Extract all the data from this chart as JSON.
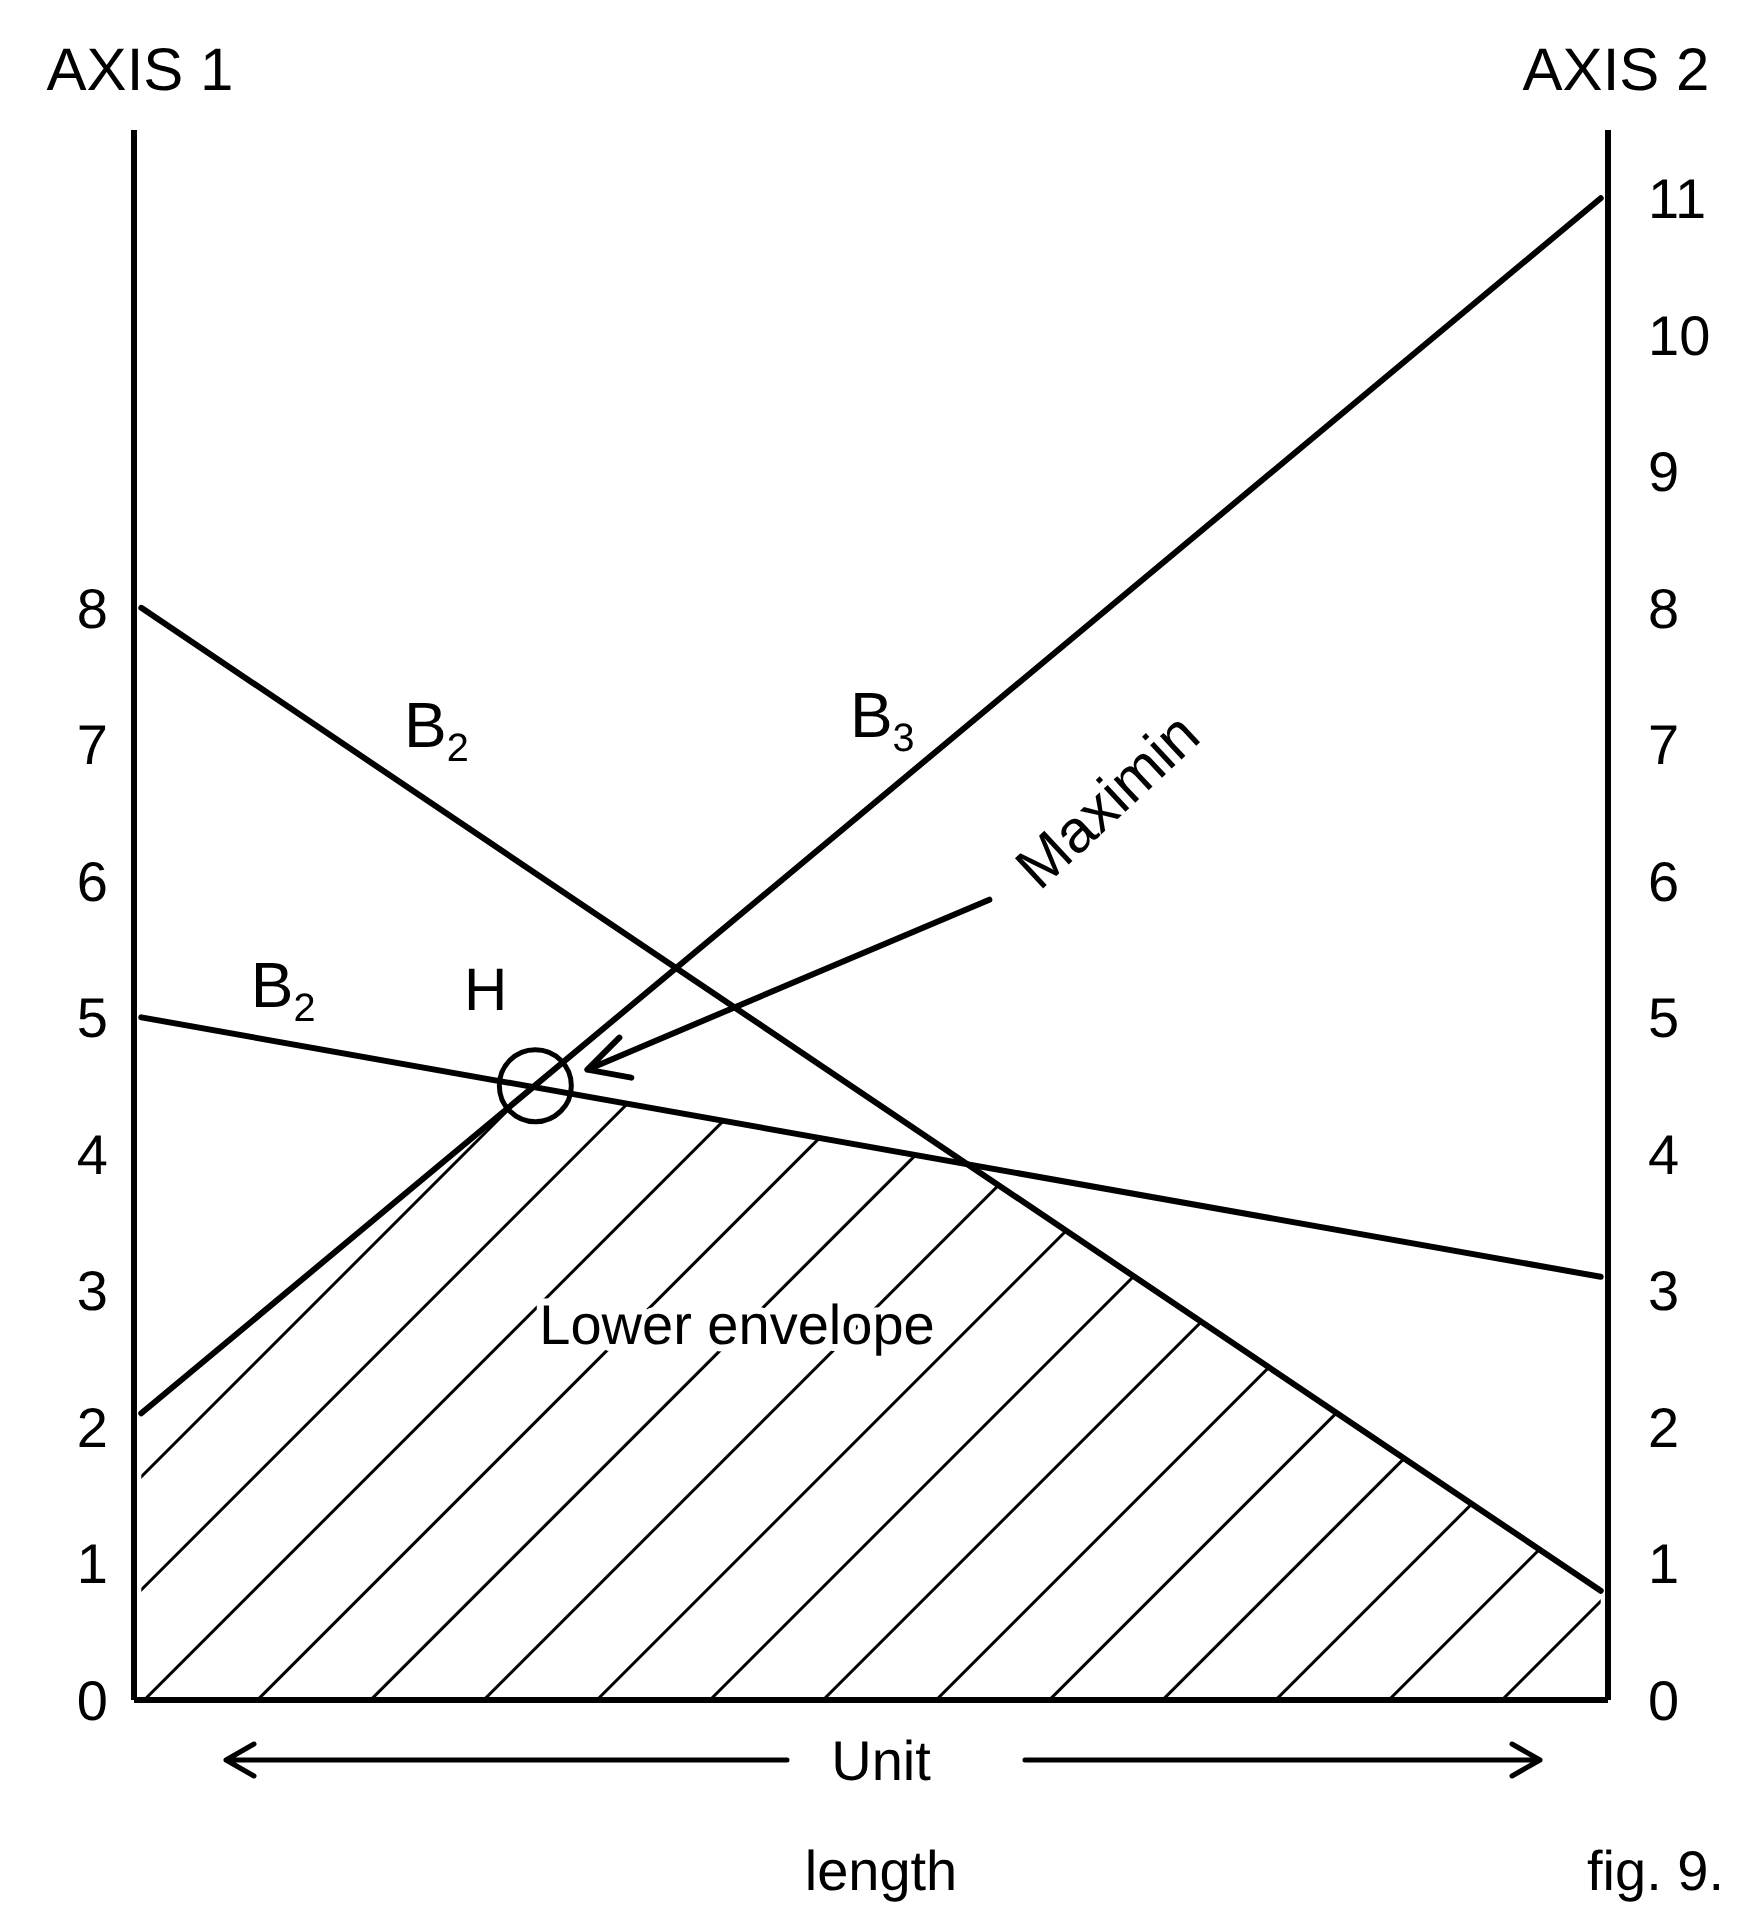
{
  "chart_data": {
    "type": "line",
    "ylabel": "AXIS 1",
    "y2label": "AXIS 2",
    "xlabel": "Unit length",
    "categories": [
      null,
      null,
      null,
      null,
      null,
      null,
      null,
      null,
      null,
      null,
      null,
      null,
      null,
      null,
      null,
      null,
      null,
      null,
      null,
      null,
      null,
      null,
      null,
      null,
      null,
      null,
      null,
      null,
      null,
      null,
      null,
      null,
      null,
      null,
      null,
      null,
      null,
      null,
      null,
      null,
      null,
      null,
      null,
      null,
      null,
      null,
      null,
      null,
      null,
      null,
      null,
      null,
      null,
      null,
      null,
      null,
      null,
      null,
      null,
      null,
      null,
      null,
      null,
      null,
      null,
      null,
      null,
      null,
      null,
      null,
      null,
      null,
      null,
      null,
      null,
      null,
      null,
      null,
      null,
      null,
      null,
      null,
      null,
      null,
      null,
      null,
      null,
      null,
      null,
      null,
      null,
      null,
      null,
      null,
      null,
      null,
      null,
      null,
      null,
      null,
      null
    ],
    "series": [
      {
        "name": "B$_{2}$",
        "color": "#000000",
        "values": [
          8,
          null,
          null,
          null,
          null,
          null,
          null,
          null,
          null,
          null,
          null,
          null,
          null,
          null,
          null,
          null,
          null,
          null,
          null,
          null,
          null,
          null,
          null,
          null,
          null,
          null,
          null,
          null,
          null,
          null,
          null,
          null,
          null,
          null,
          null,
          null,
          null,
          null,
          null,
          null,
          null,
          null,
          null,
          null,
          null,
          null,
          null,
          null,
          null,
          null,
          null,
          null,
          null,
          null,
          null,
          null,
          null,
          null,
          null,
          null,
          null,
          null,
          null,
          null,
          null,
          null,
          null,
          null,
          null,
          null,
          null,
          null,
          null,
          null,
          null,
          null,
          null,
          null,
          null,
          null,
          null,
          null,
          null,
          null,
          null,
          null,
          null,
          null,
          null,
          null,
          null,
          null,
          null,
          null,
          null,
          null,
          null,
          null,
          null,
          null,
          0.8
        ]
      },
      {
        "name": "B$_{2}$",
        "color": "#000000",
        "values": [
          5,
          null,
          null,
          null,
          null,
          null,
          null,
          null,
          null,
          null,
          null,
          null,
          null,
          null,
          null,
          null,
          null,
          null,
          null,
          null,
          null,
          null,
          null,
          null,
          null,
          null,
          null,
          null,
          null,
          null,
          null,
          null,
          null,
          null,
          null,
          null,
          null,
          null,
          null,
          null,
          null,
          null,
          null,
          null,
          null,
          null,
          null,
          null,
          null,
          null,
          null,
          null,
          null,
          null,
          null,
          null,
          null,
          null,
          null,
          null,
          null,
          null,
          null,
          null,
          null,
          null,
          null,
          null,
          null,
          null,
          null,
          null,
          null,
          null,
          null,
          null,
          null,
          null,
          null,
          null,
          null,
          null,
          null,
          null,
          null,
          null,
          null,
          null,
          null,
          null,
          null,
          null,
          null,
          null,
          null,
          null,
          null,
          null,
          null,
          null,
          3.1
        ]
      },
      {
        "name": "B$_{3}$",
        "color": "#000000",
        "values": [
          2.1,
          null,
          null,
          null,
          null,
          null,
          null,
          null,
          null,
          null,
          null,
          null,
          null,
          null,
          null,
          null,
          null,
          null,
          null,
          null,
          null,
          null,
          null,
          null,
          null,
          null,
          null,
          null,
          null,
          null,
          null,
          null,
          null,
          null,
          null,
          null,
          null,
          null,
          null,
          null,
          null,
          null,
          null,
          null,
          null,
          null,
          null,
          null,
          null,
          null,
          null,
          null,
          null,
          null,
          null,
          null,
          null,
          null,
          null,
          null,
          null,
          null,
          null,
          null,
          null,
          null,
          null,
          null,
          null,
          null,
          null,
          null,
          null,
          null,
          null,
          null,
          null,
          null,
          null,
          null,
          null,
          null,
          null,
          null,
          null,
          null,
          null,
          null,
          null,
          null,
          null,
          null,
          null,
          null,
          null,
          null,
          null,
          null,
          null,
          null,
          11
        ]
      },
      {
        "type": "area",
        "name": "Lower envelope",
        "color": "#000000",
        "values": [
          2.1,
          null,
          null,
          null,
          null,
          null,
          null,
          null,
          null,
          null,
          null,
          null,
          null,
          null,
          null,
          null,
          null,
          null,
          null,
          null,
          null,
          null,
          null,
          null,
          null,
          null,
          null,
          4.5,
          null,
          null,
          null,
          null,
          null,
          null,
          null,
          null,
          null,
          null,
          null,
          null,
          null,
          null,
          null,
          null,
          null,
          null,
          null,
          null,
          null,
          null,
          null,
          null,
          null,
          null,
          null,
          null,
          null,
          3.9,
          null,
          null,
          null,
          null,
          null,
          null,
          null,
          null,
          null,
          null,
          null,
          null,
          null,
          null,
          null,
          null,
          null,
          null,
          null,
          null,
          null,
          null,
          null,
          null,
          null,
          null,
          null,
          null,
          null,
          null,
          null,
          null,
          null,
          null,
          null,
          null,
          null,
          null,
          null,
          null,
          null,
          null,
          0.8
        ]
      },
      {
        "type": "scatter",
        "name": "H",
        "color": "#000000",
        "marker": "circle",
        "values": [
          null,
          null,
          null,
          null,
          null,
          null,
          null,
          null,
          null,
          null,
          null,
          null,
          null,
          null,
          null,
          null,
          null,
          null,
          null,
          null,
          null,
          null,
          null,
          null,
          null,
          null,
          null,
          4.5,
          null,
          null,
          null,
          null,
          null,
          null,
          null,
          null,
          null,
          null,
          null,
          null,
          null,
          null,
          null,
          null,
          null,
          null,
          null,
          null,
          null,
          null,
          null,
          null,
          null,
          null,
          null,
          null,
          null,
          null,
          null,
          null,
          null,
          null,
          null,
          null,
          null,
          null,
          null,
          null,
          null,
          null,
          null,
          null,
          null,
          null,
          null,
          null,
          null,
          null,
          null,
          null,
          null,
          null,
          null,
          null,
          null,
          null,
          null,
          null,
          null,
          null,
          null,
          null,
          null,
          null,
          null,
          null,
          null,
          null,
          null,
          null,
          null
        ]
      }
    ],
    "ylim": [
      0,
      11.5
    ],
    "yticks": [
      0,
      1,
      2,
      3,
      4,
      5,
      6,
      7,
      8
    ],
    "y2lim": [
      0,
      11.5
    ],
    "y2ticks": [
      0,
      1,
      2,
      3,
      4,
      5,
      6,
      7,
      8,
      9,
      10,
      11
    ],
    "annotations": [
      "Maximin",
      "fig. 9."
    ]
  }
}
